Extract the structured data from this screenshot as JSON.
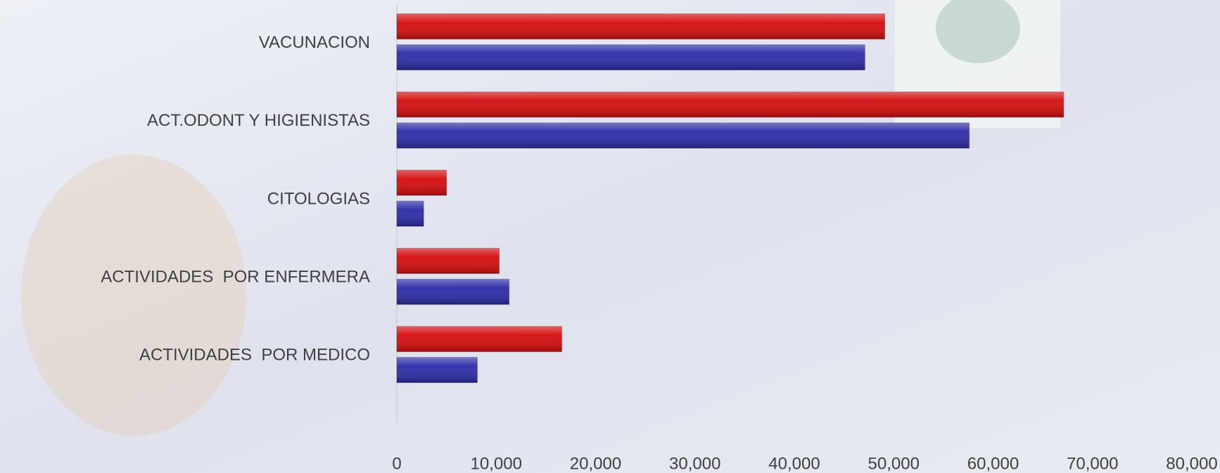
{
  "chart_data": {
    "type": "barh",
    "categories": [
      "VACUNACION",
      "ACT.ODONT Y HIGIENISTAS",
      "CITOLOGIAS",
      "ACTIVIDADES  POR ENFERMERA",
      "ACTIVIDADES  POR MEDICO"
    ],
    "series": [
      {
        "color": "#d40c0c",
        "values": [
          49100,
          67100,
          5000,
          10300,
          16600
        ]
      },
      {
        "color": "#2b2ba8",
        "values": [
          47100,
          57600,
          2700,
          11300,
          8100
        ]
      }
    ],
    "xlim": [
      0,
      80000
    ],
    "xticks": [
      0,
      {
        "value": 10000,
        "label": "10,000"
      },
      {
        "value": 20000,
        "label": "20,000"
      },
      {
        "value": 30000,
        "label": "30,000"
      },
      {
        "value": 40000,
        "label": "40,000"
      },
      {
        "value": 50000,
        "label": "50,000"
      },
      {
        "value": 60000,
        "label": "60,000"
      },
      {
        "value": 70000,
        "label": "70,000"
      },
      {
        "value": 80000,
        "label": "80,000"
      }
    ],
    "grid": false
  }
}
